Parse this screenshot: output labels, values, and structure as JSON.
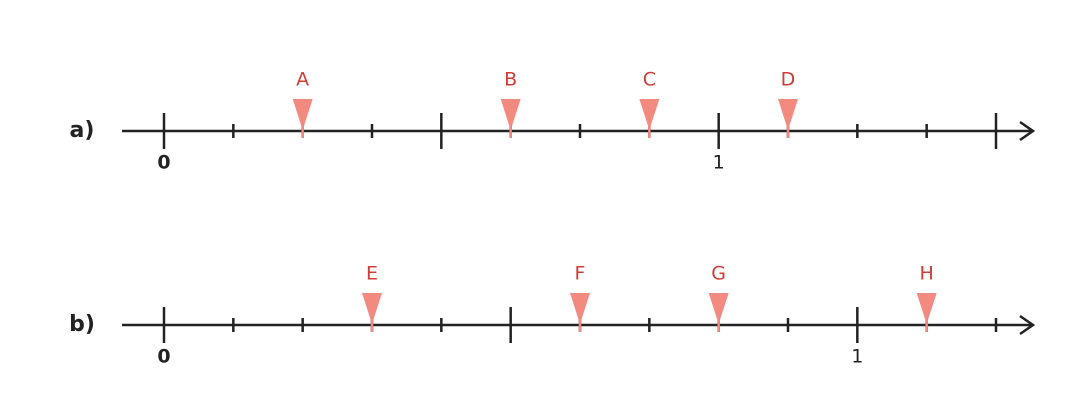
{
  "number_lines": [
    {
      "label": "a)",
      "ticks": [
        0,
        0.125,
        0.25,
        0.375,
        0.5,
        0.625,
        0.75,
        0.875,
        1,
        1.125,
        1.25,
        1.375,
        1.5
      ],
      "major_ticks": [
        0,
        0.5,
        1,
        1.5
      ],
      "tick_labels": [
        0,
        1
      ],
      "points": [
        {
          "label": "A",
          "value": 0.25
        },
        {
          "label": "B",
          "value": 0.625
        },
        {
          "label": "C",
          "value": 0.875
        },
        {
          "label": "D",
          "value": 1.125
        }
      ]
    },
    {
      "label": "b)",
      "ticks": [
        0,
        0.1,
        0.2,
        0.3,
        0.4,
        0.5,
        0.6,
        0.7,
        0.8,
        0.9,
        1,
        1.1,
        1.2
      ],
      "major_ticks": [
        0,
        0.5,
        1
      ],
      "tick_labels": [
        0,
        1
      ],
      "points": [
        {
          "label": "E",
          "value": 0.3
        },
        {
          "label": "F",
          "value": 0.6
        },
        {
          "label": "G",
          "value": 0.8
        },
        {
          "label": "H",
          "value": 1.1
        }
      ]
    }
  ]
}
